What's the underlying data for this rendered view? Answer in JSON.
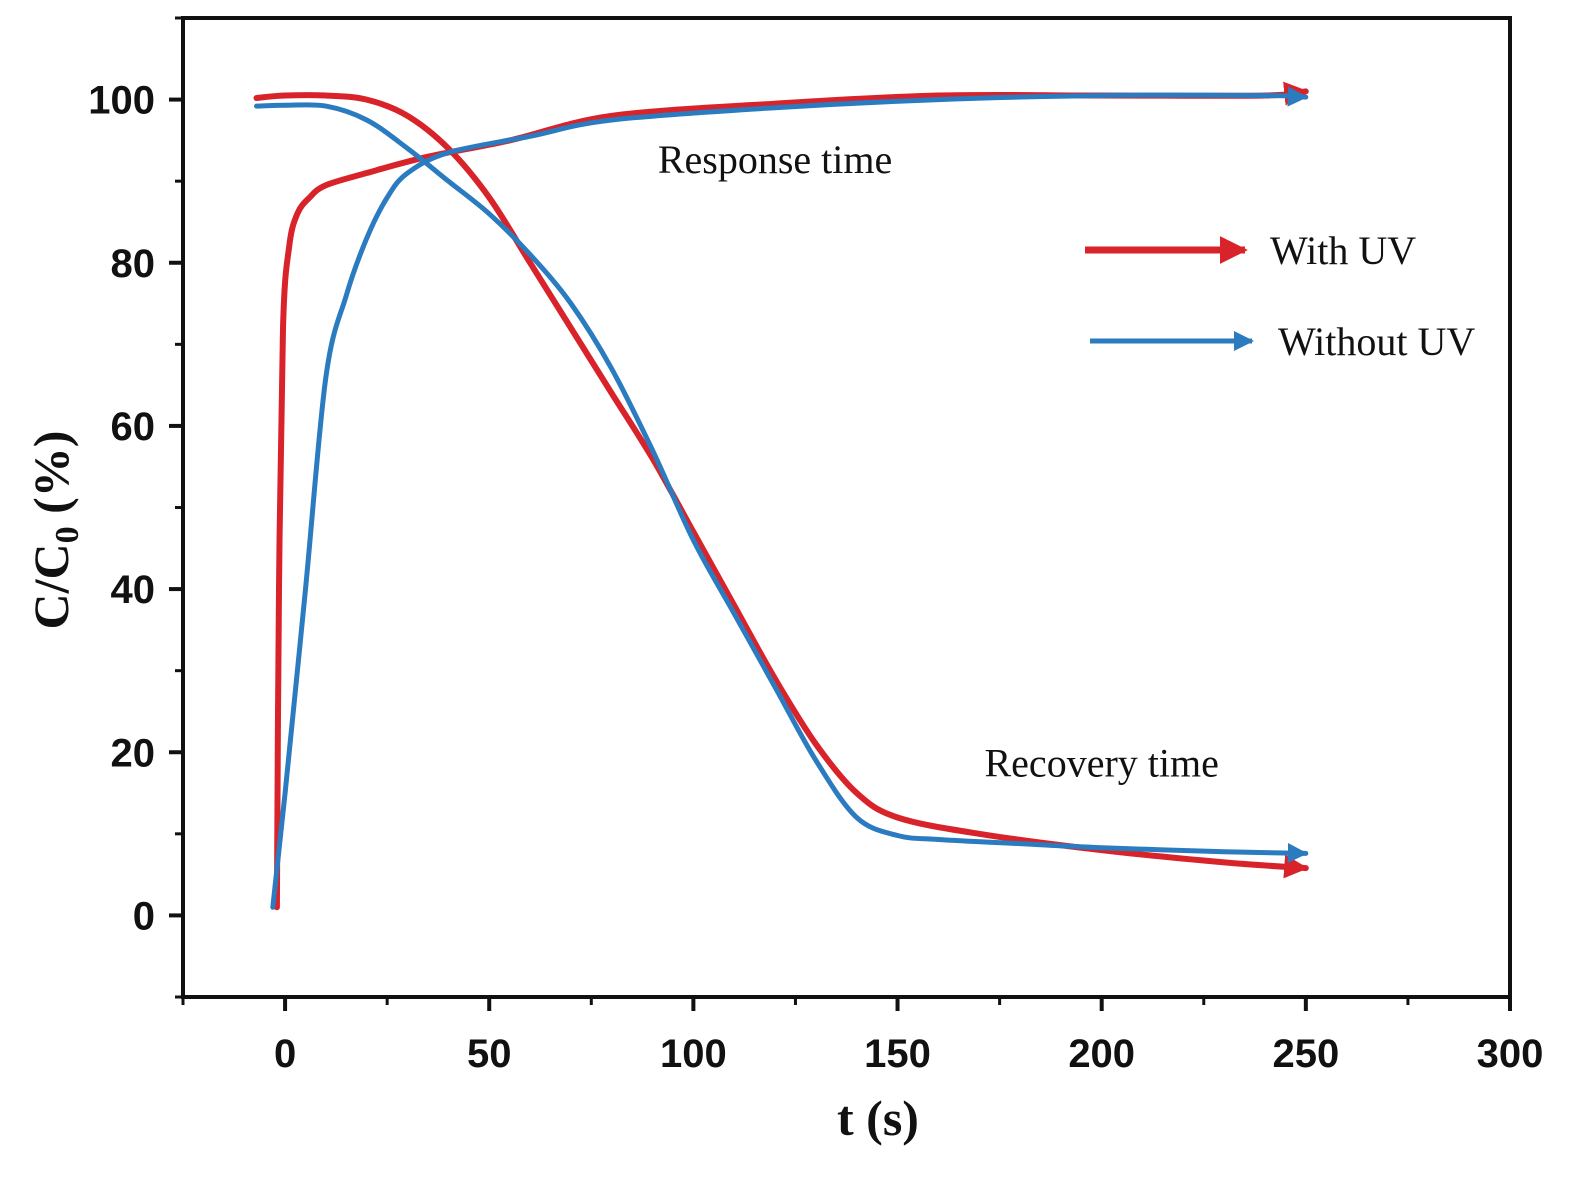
{
  "chart_data": {
    "type": "line",
    "title": "",
    "xlabel": "t (s)",
    "ylabel": "C/C0 (%)",
    "ylabel_main": "C/C",
    "ylabel_sub": "0",
    "ylabel_tail": " (%)",
    "xlim": [
      -25,
      300
    ],
    "ylim": [
      -10,
      110
    ],
    "xticks": [
      0,
      50,
      100,
      150,
      200,
      250,
      300
    ],
    "yticks": [
      0,
      20,
      40,
      60,
      80,
      100
    ],
    "x_minor_step": 25,
    "y_minor_step": 10,
    "grid": false,
    "legend_position": "right",
    "annotations": [
      {
        "text": "Response time",
        "x": 120,
        "y": 91
      },
      {
        "text": "Recovery time",
        "x": 200,
        "y": 17
      }
    ],
    "series": [
      {
        "name": "With UV",
        "color": "#d9232a",
        "segments": [
          {
            "label": "response",
            "x": [
              -2,
              -1.5,
              -0.5,
              1,
              3,
              6,
              10,
              20,
              35,
              55,
              80,
              120,
              160,
              200,
              240,
              250
            ],
            "y": [
              1,
              40,
              72,
              82,
              86,
              88,
              89.5,
              91,
              93,
              95,
              98,
              99.5,
              100.5,
              100.5,
              100.5,
              101
            ]
          },
          {
            "label": "recovery",
            "x": [
              -7,
              0,
              10,
              20,
              30,
              40,
              50,
              60,
              70,
              80,
              90,
              100,
              110,
              120,
              130,
              140,
              150,
              170,
              200,
              230,
              250
            ],
            "y": [
              100.2,
              100.5,
              100.5,
              100,
              98,
              94,
              88,
              80,
              72,
              64,
              56,
              47,
              38,
              29,
              21,
              15,
              12,
              10,
              8,
              6.5,
              5.8
            ]
          }
        ]
      },
      {
        "name": "Without UV",
        "color": "#2b7bc0",
        "segments": [
          {
            "label": "response",
            "x": [
              -3,
              0,
              5,
              10,
              15,
              20,
              25,
              30,
              40,
              60,
              80,
              120,
              160,
              200,
              240,
              250
            ],
            "y": [
              1,
              15,
              40,
              66,
              76,
              83,
              88,
              91,
              93.5,
              95.5,
              97.5,
              99,
              100,
              100.5,
              100.5,
              100.3
            ]
          },
          {
            "label": "recovery",
            "x": [
              -7,
              0,
              10,
              20,
              30,
              40,
              50,
              60,
              70,
              80,
              90,
              100,
              110,
              120,
              130,
              140,
              150,
              160,
              180,
              200,
              230,
              250
            ],
            "y": [
              99.2,
              99.3,
              99.2,
              97.5,
              94,
              90,
              86,
              81,
              75,
              67,
              57,
              46,
              37,
              28,
              19,
              12,
              9.8,
              9.3,
              8.8,
              8.3,
              7.8,
              7.6
            ]
          }
        ]
      }
    ]
  }
}
